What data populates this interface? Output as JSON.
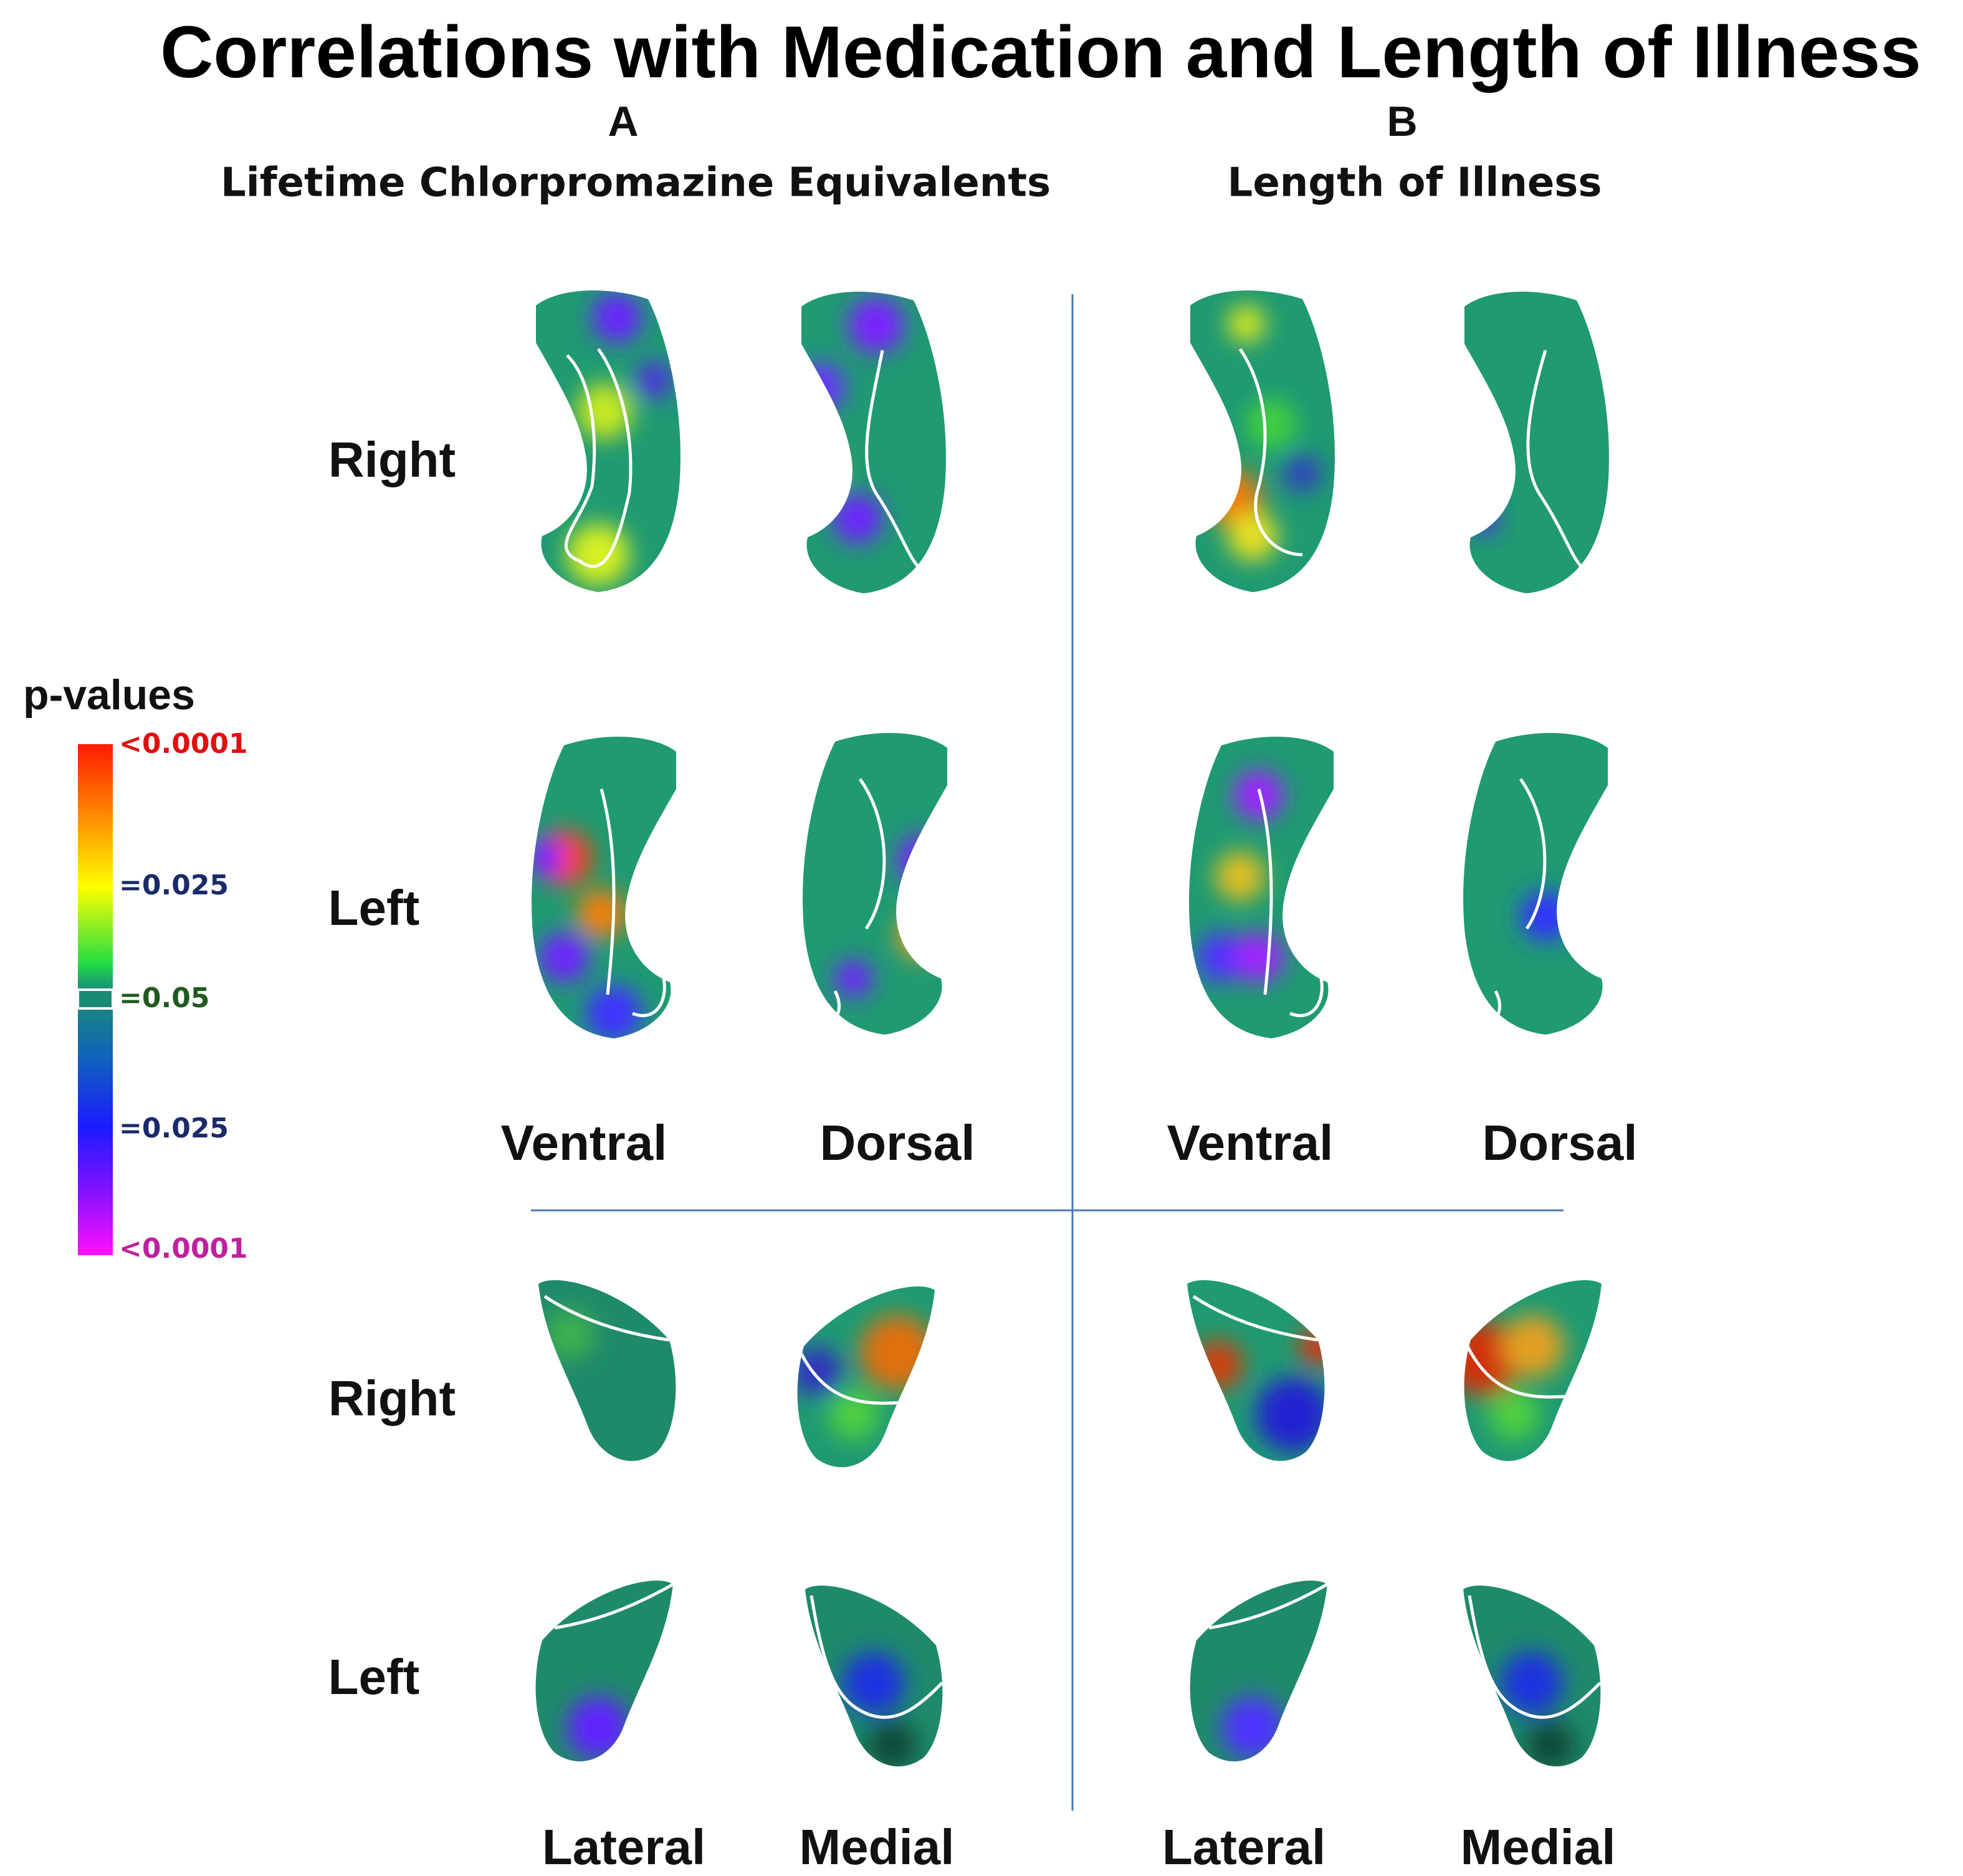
{
  "title": "Correlations with Medication and Length of Illness",
  "panels": [
    {
      "letter": "A",
      "subtitle": "Lifetime Chlorpromazine Equivalents",
      "upper_views": [
        "Ventral",
        "Dorsal"
      ],
      "lower_views": [
        "Lateral",
        "Medial"
      ]
    },
    {
      "letter": "B",
      "subtitle": "Length of Illness",
      "upper_views": [
        "Ventral",
        "Dorsal"
      ],
      "lower_views": [
        "Lateral",
        "Medial"
      ]
    }
  ],
  "row_labels": {
    "upper": [
      "Right",
      "Left"
    ],
    "lower": [
      "Right",
      "Left"
    ]
  },
  "legend": {
    "title": "p-values",
    "labels": [
      "<0.0001",
      "=0.025",
      "=0.05",
      "=0.025",
      "<0.0001"
    ]
  }
}
